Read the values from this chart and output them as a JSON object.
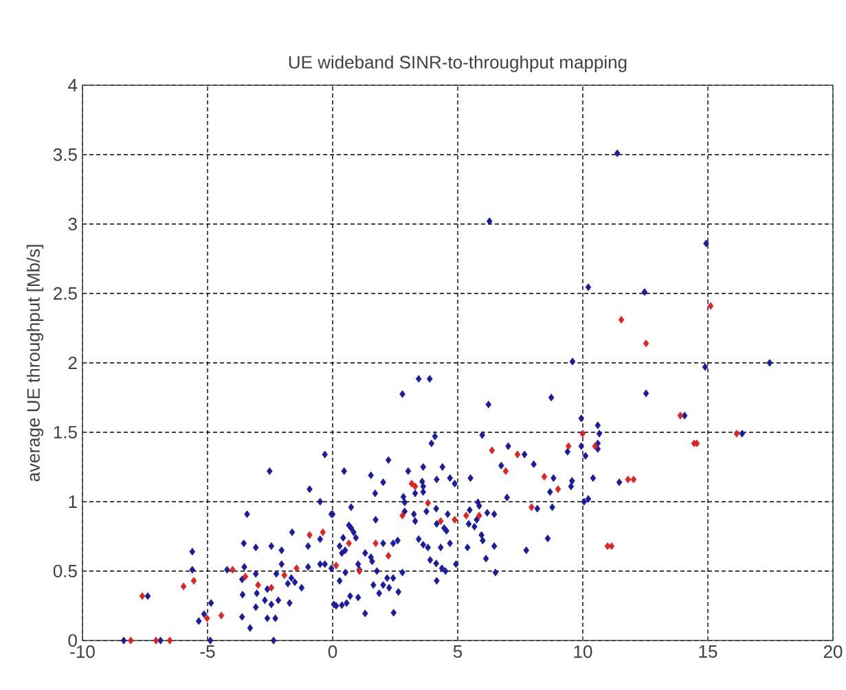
{
  "chart_data": {
    "type": "scatter",
    "title": "UE wideband SINR-to-throughput mapping",
    "ylabel": "average UE throughput [Mb/s]",
    "xlim": [
      -10,
      20
    ],
    "xticks": [
      -10,
      -5,
      0,
      5,
      10,
      15,
      20
    ],
    "ylim": [
      0,
      4
    ],
    "yticks": [
      0,
      0.5,
      1,
      1.5,
      2,
      2.5,
      3,
      3.5,
      4
    ],
    "grid": true,
    "marker": "diamond",
    "series": [
      {
        "color": "#1c1ca0",
        "x": [
          -8.35,
          -6.88,
          -4.89,
          -2.36,
          -7.39,
          -5.61,
          -5.61,
          -4.86,
          -5.14,
          -5.35,
          -3.62,
          -3.3,
          -3.6,
          -3.07,
          -3.03,
          -2.61,
          -2.71,
          -2.45,
          -2.17,
          -2.61,
          -2.29,
          -1.72,
          -3.62,
          -3.53,
          -4.22,
          -3.07,
          -3.55,
          -3.07,
          -2.45,
          -2.04,
          -2.52,
          -3.42,
          -2.25,
          -2.04,
          -1.65,
          -1.79,
          -1.51,
          -1.24,
          -1.62,
          -0.98,
          -0.98,
          -0.5,
          -0.5,
          -0.92,
          -0.31,
          -0.05,
          -0.5,
          -0.31,
          -0.05,
          0.05,
          3.44,
          3.88,
          2.79,
          6.23,
          8.74,
          9.94,
          5.98,
          4.09,
          3.95,
          7.02,
          7.67,
          8.04,
          9.39,
          9.94,
          6.74,
          2.23,
          0.46,
          1.53,
          2.02,
          3.02,
          3.62,
          4.39,
          4.16,
          4.69,
          4.88,
          3.58,
          3.62,
          5.51,
          8.83,
          8.69,
          9.57,
          9.53,
          1.7,
          3.3,
          3.62,
          6.97,
          2.83,
          2.88,
          0.74,
          0,
          1.72,
          2.88,
          3.25,
          3.3,
          3.75,
          4.14,
          4.6,
          4.16,
          4.46,
          4.55,
          5.48,
          5.81,
          5.86,
          5.76,
          6.18,
          6.46,
          5.44,
          5.67,
          8.18,
          8.78,
          8.6,
          7.74,
          5.95,
          6.0,
          6.46,
          5.39,
          6.13,
          6.51,
          0.65,
          0.74,
          0.84,
          0.93,
          0.42,
          0.28,
          0.5,
          0.37,
          2.02,
          2.6,
          2.42,
          1.3,
          1.53,
          1.58,
          3.44,
          3.62,
          3.81,
          4.32,
          4.69,
          3.9,
          4.14,
          4.37,
          4.51,
          4.93,
          1.02,
          1.07,
          0.51,
          0.28,
          1.77,
          2.79,
          1.63,
          2.02,
          2.18,
          2.42,
          1.86,
          2.26,
          2.63,
          4.16,
          0.14,
          0.37,
          0.56,
          0.7,
          1.02,
          1.3,
          2.44,
          10.22,
          12.47,
          14.89,
          17.47,
          12.53,
          14.07,
          16.37,
          10.6,
          10.66,
          10.6,
          10.6,
          10.11,
          10.41,
          11.46,
          10.05,
          10.22,
          11.38,
          6.27,
          14.93,
          9.59
        ],
        "values": [
          0,
          0,
          0,
          0,
          0.32,
          0.64,
          0.51,
          0.27,
          0.19,
          0.14,
          0.17,
          0.09,
          0.33,
          0.24,
          0.34,
          0.37,
          0.29,
          0.26,
          0.29,
          0.16,
          0.16,
          0.27,
          0.44,
          0.53,
          0.51,
          0.48,
          0.7,
          0.67,
          0.68,
          0.65,
          1.22,
          0.91,
          0.48,
          0.55,
          0.45,
          0.41,
          0.42,
          0.38,
          0.78,
          0.53,
          0.68,
          0.73,
          1.0,
          1.09,
          1.34,
          0.91,
          0.55,
          0.55,
          0.52,
          0.26,
          1.885,
          1.885,
          1.775,
          1.7,
          1.75,
          1.6,
          1.48,
          1.47,
          1.42,
          1.4,
          1.34,
          1.27,
          1.36,
          1.4,
          1.26,
          1.3,
          1.22,
          1.19,
          1.14,
          1.22,
          1.25,
          1.25,
          1.16,
          1.17,
          1.13,
          1.145,
          1.11,
          1.17,
          1.17,
          1.07,
          1.15,
          1.11,
          1.06,
          1.06,
          1.07,
          1.03,
          1.035,
          0.995,
          0.96,
          0.91,
          0.87,
          0.93,
          0.91,
          0.86,
          0.93,
          0.95,
          0.91,
          0.84,
          0.81,
          0.79,
          0.94,
          0.995,
          0.97,
          0.87,
          0.92,
          0.91,
          0.84,
          0.82,
          0.95,
          0.96,
          0.735,
          0.65,
          0.76,
          0.72,
          0.68,
          0.67,
          0.59,
          0.49,
          0.83,
          0.81,
          0.78,
          0.74,
          0.74,
          0.68,
          0.65,
          0.63,
          0.7,
          0.72,
          0.7,
          0.63,
          0.6,
          0.57,
          0.73,
          0.69,
          0.67,
          0.67,
          0.7,
          0.58,
          0.555,
          0.52,
          0.5,
          0.55,
          0.55,
          0.51,
          0.49,
          0.43,
          0.5,
          0.49,
          0.4,
          0.4,
          0.45,
          0.45,
          0.34,
          0.38,
          0.35,
          0.43,
          0.25,
          0.255,
          0.27,
          0.32,
          0.31,
          0.195,
          0.2,
          2.545,
          2.51,
          1.97,
          2.0,
          1.78,
          1.62,
          1.49,
          1.55,
          1.49,
          1.42,
          1.38,
          1.33,
          1.17,
          1.14,
          1.0,
          1.02,
          3.51,
          3.02,
          2.86,
          2.01
        ]
      },
      {
        "color": "#e02424",
        "x": [
          -8.07,
          -7.06,
          -6.51,
          -7.61,
          -5.96,
          -5.55,
          -5.02,
          -4.45,
          -2.98,
          -2.45,
          -3.49,
          -4.0,
          -1.93,
          -1.44,
          -0.92,
          -0.39,
          9.99,
          6.37,
          7.39,
          9.43,
          6.92,
          3.16,
          3.3,
          8.46,
          9.01,
          3.81,
          2.79,
          4.32,
          4.88,
          5.34,
          5.86,
          7.95,
          0.65,
          1.72,
          2.23,
          1.07,
          0.14,
          15.11,
          11.54,
          12.53,
          13.9,
          16.15,
          14.45,
          14.56,
          10.49,
          11.81,
          12.03,
          10.99,
          11.15
        ],
        "values": [
          0,
          0,
          0,
          0.32,
          0.39,
          0.43,
          0.16,
          0.18,
          0.4,
          0.38,
          0.46,
          0.51,
          0.47,
          0.52,
          0.76,
          0.78,
          1.49,
          1.37,
          1.34,
          1.4,
          1.22,
          1.13,
          1.11,
          1.18,
          1.09,
          0.99,
          0.9,
          0.86,
          0.87,
          0.9,
          0.9,
          0.96,
          0.7,
          0.7,
          0.61,
          0.5,
          0.54,
          2.41,
          2.31,
          2.14,
          1.62,
          1.49,
          1.42,
          1.42,
          1.4,
          1.16,
          1.16,
          0.68,
          0.68
        ]
      }
    ]
  }
}
